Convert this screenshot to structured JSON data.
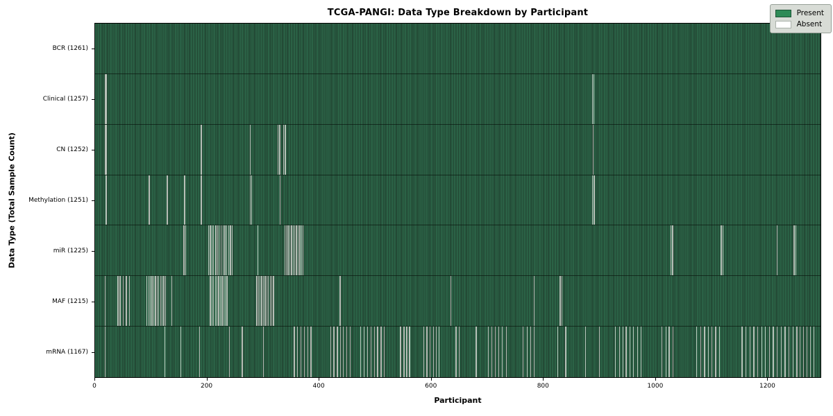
{
  "chart_data": {
    "type": "heatmap",
    "title": "TCGA-PANGI: Data Type Breakdown by Participant",
    "xlabel": "Participant",
    "ylabel": "Data Type (Total Sample Count)",
    "x_ticks": [
      0,
      200,
      400,
      600,
      800,
      1000,
      1200
    ],
    "x_max": 1296,
    "total_participants": 1261,
    "grid": false,
    "legend_position": "upper right",
    "legend": [
      {
        "label": "Present",
        "color": "#2e8b57"
      },
      {
        "label": "Absent",
        "color": "#ffffff"
      }
    ],
    "colors": {
      "present_fill": "#2e8b57",
      "stripe_light": "#2e6d4d",
      "stripe_dark": "#203f2e",
      "absent_line": "#b7bfb7",
      "row_divider": "rgba(5,15,8,0.62)",
      "legend_bg": "#d8dcd6"
    },
    "rows": [
      {
        "label": "BCR (1261)",
        "data_type": "BCR",
        "sample_count": 1261,
        "absent": []
      },
      {
        "label": "Clinical (1257)",
        "data_type": "Clinical",
        "sample_count": 1257,
        "absent": [
          17,
          19,
          888,
          890
        ]
      },
      {
        "label": "CN (1252)",
        "data_type": "CN",
        "sample_count": 1252,
        "absent": [
          17,
          19,
          189,
          276,
          326,
          329,
          336,
          339,
          889
        ]
      },
      {
        "label": "Methylation (1251)",
        "data_type": "Methylation",
        "sample_count": 1251,
        "absent": [
          19,
          96,
          128,
          159,
          189,
          276,
          279,
          330,
          888,
          891
        ]
      },
      {
        "label": "miR (1225)",
        "data_type": "miR",
        "sample_count": 1225,
        "absent": [
          158,
          161,
          202,
          205,
          208,
          211,
          215,
          218,
          221,
          224,
          228,
          231,
          234,
          238,
          241,
          244,
          290,
          338,
          341,
          344,
          347,
          350,
          353,
          356,
          359,
          362,
          365,
          368,
          371,
          1028,
          1031,
          1118,
          1121,
          1218,
          1248,
          1251
        ]
      },
      {
        "label": "MAF (1215)",
        "data_type": "MAF",
        "sample_count": 1215,
        "absent": [
          17,
          40,
          44,
          49,
          55,
          61,
          92,
          95,
          98,
          101,
          104,
          107,
          110,
          113,
          116,
          119,
          122,
          125,
          136,
          205,
          208,
          211,
          214,
          217,
          220,
          223,
          226,
          229,
          232,
          235,
          288,
          291,
          294,
          297,
          300,
          303,
          306,
          309,
          312,
          315,
          318,
          437,
          635,
          784,
          830,
          833
        ]
      },
      {
        "label": "mRNA (1167)",
        "data_type": "mRNA",
        "sample_count": 1167,
        "absent": [
          17,
          124,
          152,
          186,
          239,
          262,
          300,
          355,
          361,
          367,
          373,
          379,
          385,
          420,
          426,
          432,
          438,
          443,
          449,
          455,
          474,
          480,
          486,
          492,
          498,
          504,
          510,
          516,
          545,
          551,
          556,
          561,
          586,
          592,
          598,
          604,
          609,
          614,
          644,
          650,
          680,
          702,
          708,
          714,
          720,
          727,
          734,
          764,
          771,
          777,
          784,
          826,
          840,
          875,
          900,
          929,
          936,
          942,
          948,
          955,
          961,
          968,
          975,
          1012,
          1019,
          1025,
          1032,
          1074,
          1081,
          1088,
          1095,
          1101,
          1108,
          1115,
          1155,
          1162,
          1169,
          1176,
          1183,
          1190,
          1197,
          1204,
          1211,
          1218,
          1225,
          1232,
          1239,
          1246,
          1253,
          1259,
          1265,
          1271,
          1277,
          1283
        ]
      }
    ]
  }
}
